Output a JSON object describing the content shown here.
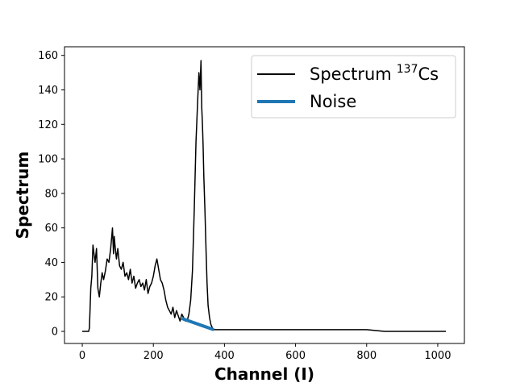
{
  "chart_data": {
    "type": "line",
    "title": "",
    "xlabel": "Channel (I)",
    "ylabel": "Spectrum",
    "xlim": [
      -50,
      1075
    ],
    "ylim": [
      -7,
      165
    ],
    "xticks": [
      0,
      200,
      400,
      600,
      800,
      1000
    ],
    "yticks": [
      0,
      20,
      40,
      60,
      80,
      100,
      120,
      140,
      160
    ],
    "grid": false,
    "legend": {
      "position": "top-right",
      "entries": [
        {
          "label": "Spectrum",
          "sup": "137",
          "suffix": "Cs",
          "color": "#000000"
        },
        {
          "label": "Noise",
          "color": "#1f77b4"
        }
      ]
    },
    "series": [
      {
        "name": "Spectrum 137Cs",
        "color": "#000000",
        "x": [
          0,
          18,
          20,
          24,
          27,
          30,
          33,
          36,
          40,
          44,
          48,
          52,
          56,
          60,
          65,
          70,
          75,
          80,
          85,
          88,
          90,
          92,
          96,
          100,
          105,
          110,
          115,
          120,
          125,
          130,
          135,
          140,
          145,
          150,
          155,
          160,
          165,
          170,
          175,
          180,
          185,
          190,
          195,
          200,
          205,
          210,
          215,
          220,
          225,
          230,
          235,
          240,
          245,
          250,
          255,
          260,
          265,
          270,
          275,
          280,
          285,
          290,
          295,
          300,
          305,
          310,
          315,
          320,
          325,
          328,
          331,
          334,
          336,
          338,
          340,
          342,
          345,
          348,
          351,
          354,
          358,
          362,
          366,
          370,
          375,
          380,
          390,
          400,
          420,
          450,
          480,
          520,
          560,
          600,
          650,
          700,
          750,
          800,
          850,
          900,
          950,
          1000,
          1023
        ],
        "y": [
          0,
          0,
          2,
          25,
          32,
          50,
          45,
          40,
          48,
          25,
          20,
          28,
          34,
          30,
          35,
          42,
          40,
          48,
          60,
          45,
          55,
          50,
          42,
          48,
          38,
          36,
          40,
          32,
          34,
          30,
          36,
          28,
          32,
          25,
          28,
          30,
          26,
          28,
          24,
          30,
          22,
          26,
          28,
          32,
          38,
          42,
          36,
          30,
          28,
          24,
          18,
          14,
          12,
          10,
          14,
          8,
          12,
          9,
          6,
          10,
          8,
          6,
          6,
          10,
          18,
          35,
          70,
          110,
          135,
          150,
          140,
          157,
          130,
          120,
          108,
          90,
          70,
          48,
          28,
          15,
          8,
          4,
          2,
          1,
          1,
          1,
          1,
          1,
          1,
          1,
          1,
          1,
          1,
          1,
          1,
          1,
          1,
          1,
          0,
          0,
          0,
          0,
          0
        ]
      },
      {
        "name": "Noise",
        "color": "#1f77b4",
        "x": [
          280,
          370
        ],
        "y": [
          7.5,
          1.0
        ]
      }
    ]
  }
}
